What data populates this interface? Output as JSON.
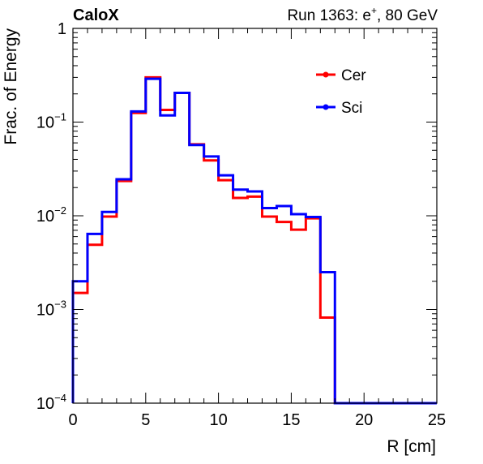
{
  "header": {
    "left_label": "CaloX",
    "right_prefix": "Run 1363: e",
    "right_superscript": "+",
    "right_suffix": ", 80 GeV"
  },
  "chart_data": {
    "type": "line",
    "style": "step-histogram",
    "xlabel": "R [cm]",
    "ylabel": "Frac. of Energy",
    "xlim": [
      0,
      25
    ],
    "ylim": [
      0.0001,
      1
    ],
    "yscale": "log",
    "legend_position": "top-right",
    "grid": false,
    "x_ticks": [
      {
        "value": 0,
        "label": "0"
      },
      {
        "value": 5,
        "label": "5"
      },
      {
        "value": 10,
        "label": "10"
      },
      {
        "value": 15,
        "label": "15"
      },
      {
        "value": 20,
        "label": "20"
      },
      {
        "value": 25,
        "label": "25"
      }
    ],
    "y_ticks": [
      {
        "value": 1,
        "base": "1",
        "exp": ""
      },
      {
        "value": 0.1,
        "base": "10",
        "exp": "−1"
      },
      {
        "value": 0.01,
        "base": "10",
        "exp": "−2"
      },
      {
        "value": 0.001,
        "base": "10",
        "exp": "−3"
      },
      {
        "value": 0.0001,
        "base": "10",
        "exp": "−4"
      }
    ],
    "bin_edges": [
      0,
      1,
      2,
      3,
      4,
      5,
      6,
      7,
      8,
      9,
      10,
      11,
      12,
      13,
      14,
      15,
      16,
      17,
      18,
      19,
      20,
      21,
      22,
      23,
      24,
      25
    ],
    "series": [
      {
        "name": "Cer",
        "color": "#ff0000",
        "values": [
          0.0015,
          0.0049,
          0.0098,
          0.0235,
          0.125,
          0.3,
          0.135,
          0.205,
          0.058,
          0.039,
          0.024,
          0.0155,
          0.016,
          0.0098,
          0.0086,
          0.0071,
          0.0094,
          0.00082,
          0,
          0,
          0,
          0,
          0,
          0,
          0
        ]
      },
      {
        "name": "Sci",
        "color": "#0000ff",
        "values": [
          0.002,
          0.0064,
          0.011,
          0.0245,
          0.13,
          0.29,
          0.118,
          0.205,
          0.057,
          0.043,
          0.027,
          0.019,
          0.0182,
          0.0121,
          0.0127,
          0.0104,
          0.0097,
          0.0025,
          0,
          0,
          0,
          0,
          0,
          0,
          0
        ]
      }
    ]
  }
}
